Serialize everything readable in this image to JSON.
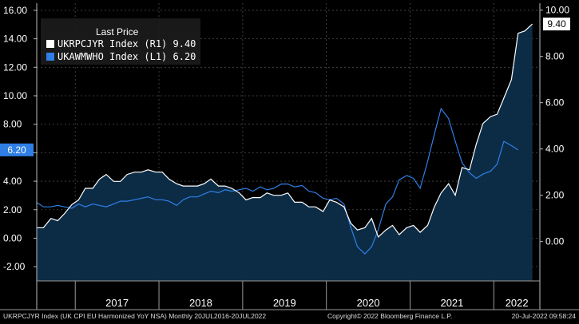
{
  "chart_data": {
    "type": "line",
    "legend": {
      "title": "Last Price",
      "placement": "top-left"
    },
    "left_axis": {
      "ylim": [
        -3.0,
        16.5
      ],
      "ticks": [
        "-2.00",
        "0.00",
        "2.00",
        "4.00",
        "6.00",
        "8.00",
        "10.00",
        "12.00",
        "14.00",
        "16.00"
      ]
    },
    "right_axis": {
      "ylim": [
        -1.7,
        10.3
      ],
      "ticks": [
        "0.00",
        "2.00",
        "4.00",
        "6.00",
        "8.00",
        "10.00"
      ]
    },
    "x_axis": {
      "range": [
        2016.54,
        2022.55
      ],
      "year_labels": [
        "2017",
        "2018",
        "2019",
        "2020",
        "2021",
        "2022"
      ],
      "year_boundaries": [
        2017,
        2018,
        2019,
        2020,
        2021,
        2022
      ]
    },
    "grid": true,
    "series": [
      {
        "name": "UKRPCJYR Index",
        "axis": "R1",
        "last": "9.40",
        "color": "#ffffff",
        "fill": "#0d2e4a",
        "values": [
          [
            2016.54,
            0.6
          ],
          [
            2016.62,
            0.6
          ],
          [
            2016.71,
            1.0
          ],
          [
            2016.79,
            0.9
          ],
          [
            2016.87,
            1.2
          ],
          [
            2016.96,
            1.6
          ],
          [
            2017.04,
            1.8
          ],
          [
            2017.12,
            2.3
          ],
          [
            2017.21,
            2.3
          ],
          [
            2017.29,
            2.7
          ],
          [
            2017.37,
            2.9
          ],
          [
            2017.46,
            2.6
          ],
          [
            2017.54,
            2.6
          ],
          [
            2017.62,
            2.9
          ],
          [
            2017.71,
            3.0
          ],
          [
            2017.79,
            3.0
          ],
          [
            2017.87,
            3.1
          ],
          [
            2017.96,
            3.0
          ],
          [
            2018.04,
            3.0
          ],
          [
            2018.12,
            2.7
          ],
          [
            2018.21,
            2.5
          ],
          [
            2018.29,
            2.4
          ],
          [
            2018.37,
            2.4
          ],
          [
            2018.46,
            2.4
          ],
          [
            2018.54,
            2.5
          ],
          [
            2018.62,
            2.7
          ],
          [
            2018.71,
            2.4
          ],
          [
            2018.79,
            2.4
          ],
          [
            2018.87,
            2.3
          ],
          [
            2018.96,
            2.1
          ],
          [
            2019.04,
            1.8
          ],
          [
            2019.12,
            1.9
          ],
          [
            2019.21,
            1.9
          ],
          [
            2019.29,
            2.1
          ],
          [
            2019.37,
            2.0
          ],
          [
            2019.46,
            2.0
          ],
          [
            2019.54,
            2.1
          ],
          [
            2019.62,
            1.7
          ],
          [
            2019.71,
            1.7
          ],
          [
            2019.79,
            1.5
          ],
          [
            2019.87,
            1.5
          ],
          [
            2019.96,
            1.3
          ],
          [
            2020.04,
            1.8
          ],
          [
            2020.12,
            1.7
          ],
          [
            2020.21,
            1.5
          ],
          [
            2020.29,
            0.8
          ],
          [
            2020.37,
            0.5
          ],
          [
            2020.46,
            0.6
          ],
          [
            2020.54,
            1.0
          ],
          [
            2020.62,
            0.2
          ],
          [
            2020.71,
            0.5
          ],
          [
            2020.79,
            0.7
          ],
          [
            2020.87,
            0.3
          ],
          [
            2020.96,
            0.6
          ],
          [
            2021.04,
            0.7
          ],
          [
            2021.12,
            0.4
          ],
          [
            2021.21,
            0.7
          ],
          [
            2021.29,
            1.5
          ],
          [
            2021.37,
            2.1
          ],
          [
            2021.46,
            2.5
          ],
          [
            2021.54,
            2.0
          ],
          [
            2021.62,
            3.2
          ],
          [
            2021.71,
            3.1
          ],
          [
            2021.79,
            4.2
          ],
          [
            2021.87,
            5.1
          ],
          [
            2021.96,
            5.4
          ],
          [
            2022.04,
            5.5
          ],
          [
            2022.12,
            6.2
          ],
          [
            2022.21,
            7.0
          ],
          [
            2022.29,
            9.0
          ],
          [
            2022.37,
            9.1
          ],
          [
            2022.46,
            9.4
          ]
        ]
      },
      {
        "name": "UKAWMWHO Index",
        "axis": "L1",
        "last": "6.20",
        "color": "#2f7fe6",
        "values": [
          [
            2016.54,
            2.5
          ],
          [
            2016.62,
            2.2
          ],
          [
            2016.71,
            2.2
          ],
          [
            2016.79,
            2.3
          ],
          [
            2016.87,
            2.2
          ],
          [
            2016.96,
            2.1
          ],
          [
            2017.04,
            2.4
          ],
          [
            2017.12,
            2.2
          ],
          [
            2017.21,
            2.4
          ],
          [
            2017.29,
            2.3
          ],
          [
            2017.37,
            2.2
          ],
          [
            2017.46,
            2.4
          ],
          [
            2017.54,
            2.6
          ],
          [
            2017.62,
            2.6
          ],
          [
            2017.71,
            2.7
          ],
          [
            2017.79,
            2.8
          ],
          [
            2017.87,
            2.9
          ],
          [
            2017.96,
            2.7
          ],
          [
            2018.04,
            2.7
          ],
          [
            2018.12,
            2.6
          ],
          [
            2018.21,
            2.3
          ],
          [
            2018.29,
            2.7
          ],
          [
            2018.37,
            2.9
          ],
          [
            2018.46,
            2.9
          ],
          [
            2018.54,
            3.1
          ],
          [
            2018.62,
            3.3
          ],
          [
            2018.71,
            3.2
          ],
          [
            2018.79,
            3.4
          ],
          [
            2018.87,
            3.3
          ],
          [
            2018.96,
            3.4
          ],
          [
            2019.04,
            3.5
          ],
          [
            2019.12,
            3.3
          ],
          [
            2019.21,
            3.6
          ],
          [
            2019.29,
            3.4
          ],
          [
            2019.37,
            3.5
          ],
          [
            2019.46,
            3.8
          ],
          [
            2019.54,
            3.8
          ],
          [
            2019.62,
            3.6
          ],
          [
            2019.71,
            3.7
          ],
          [
            2019.79,
            3.3
          ],
          [
            2019.87,
            3.2
          ],
          [
            2019.96,
            2.8
          ],
          [
            2020.04,
            2.7
          ],
          [
            2020.12,
            2.8
          ],
          [
            2020.21,
            2.4
          ],
          [
            2020.29,
            0.8
          ],
          [
            2020.37,
            -0.6
          ],
          [
            2020.46,
            -1.1
          ],
          [
            2020.54,
            -0.6
          ],
          [
            2020.62,
            0.6
          ],
          [
            2020.71,
            2.4
          ],
          [
            2020.79,
            2.9
          ],
          [
            2020.87,
            4.1
          ],
          [
            2020.96,
            4.4
          ],
          [
            2021.04,
            4.2
          ],
          [
            2021.12,
            3.5
          ],
          [
            2021.21,
            5.4
          ],
          [
            2021.29,
            7.3
          ],
          [
            2021.37,
            9.1
          ],
          [
            2021.46,
            8.4
          ],
          [
            2021.54,
            6.8
          ],
          [
            2021.62,
            5.3
          ],
          [
            2021.71,
            4.6
          ],
          [
            2021.79,
            4.2
          ],
          [
            2021.87,
            4.5
          ],
          [
            2021.96,
            4.7
          ],
          [
            2022.04,
            5.2
          ],
          [
            2022.12,
            6.8
          ],
          [
            2022.21,
            6.5
          ],
          [
            2022.29,
            6.2
          ]
        ]
      }
    ],
    "badges": [
      {
        "text": "6.20",
        "side": "left",
        "value": 6.2,
        "bg": "#2f7fe6",
        "fg": "#ffffff"
      },
      {
        "text": "9.40",
        "side": "right",
        "value": 9.4,
        "bg": "#ffffff",
        "fg": "#000000"
      }
    ],
    "footer": {
      "left": "UKRPCJYR Index (UK CPI EU Harmonized YoY NSA)  Monthly 20JUL2016-20JUL2022",
      "center": "Copyright© 2022 Bloomberg Finance L.P.",
      "right": "20-Jul-2022 09:58:24"
    }
  }
}
